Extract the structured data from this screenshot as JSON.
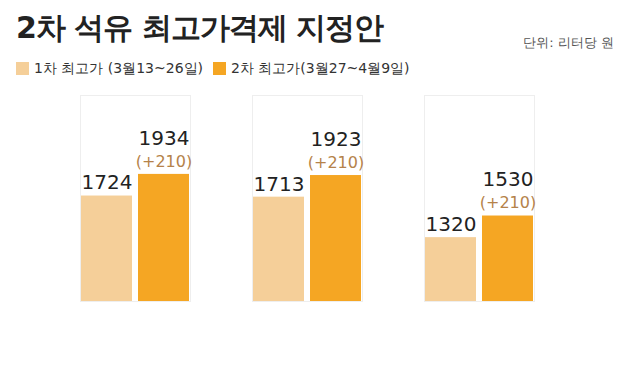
{
  "chart_data": {
    "type": "bar",
    "title": "2차 석유 최고가격제 지정안",
    "subtitle": "단위: 리터당 원",
    "categories": [
      null,
      null,
      null
    ],
    "series": [
      {
        "name": "1차 최고가 (3월13~26일)",
        "color": "#f5cf99",
        "values": [
          1724,
          1713,
          1320
        ]
      },
      {
        "name": "2차 최고가(3월27~4월9일)",
        "color": "#f5a623",
        "values": [
          1934,
          1923,
          1530
        ],
        "annotations": [
          "(+210)",
          "(+210)",
          "(+210)"
        ]
      }
    ],
    "ylim": [
      700,
      2700
    ],
    "yticks": [],
    "tick_labels": false,
    "data_labels": true,
    "legend": "top-left",
    "grid": false
  }
}
